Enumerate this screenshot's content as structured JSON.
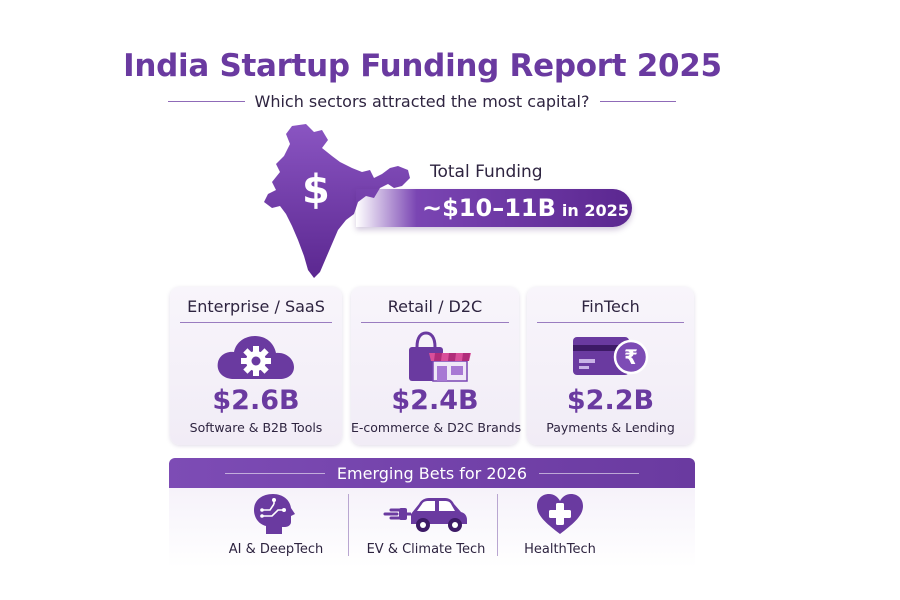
{
  "header": {
    "title": "India Startup Funding Report 2025",
    "subtitle": "Which sectors attracted the most capital?"
  },
  "total": {
    "label": "Total Funding",
    "symbol": "$",
    "value": "~$10–11B",
    "period": "in 2025"
  },
  "sectors": [
    {
      "title": "Enterprise / SaaS",
      "value": "$2.6B",
      "subtitle": "Software & B2B Tools",
      "icon": "cloud-gear-icon"
    },
    {
      "title": "Retail / D2C",
      "value": "$2.4B",
      "subtitle": "E-commerce & D2C Brands",
      "icon": "shopping-bag-store-icon"
    },
    {
      "title": "FinTech",
      "value": "$2.2B",
      "subtitle": "Payments & Lending",
      "icon": "card-rupee-icon"
    }
  ],
  "emerging": {
    "title": "Emerging Bets for 2026",
    "items": [
      {
        "label": "AI & DeepTech",
        "icon": "ai-head-icon"
      },
      {
        "label": "EV & Climate Tech",
        "icon": "ev-car-icon"
      },
      {
        "label": "HealthTech",
        "icon": "heart-plus-icon"
      }
    ]
  },
  "colors": {
    "primary": "#6a3aa0",
    "dark": "#5b2790",
    "text": "#2e2440",
    "card": "#f4f0f8"
  }
}
